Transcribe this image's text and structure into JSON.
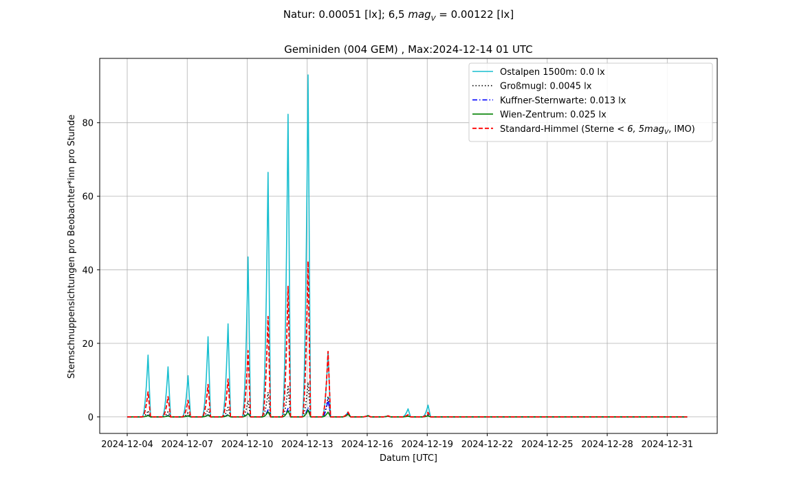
{
  "suptitle": {
    "prefix": "Natur: 0.00051 [lx]; 6,5 ",
    "mag": "mag",
    "mag_sub": "V",
    "suffix": " = 0.00122 [lx]"
  },
  "chart_data": {
    "type": "line",
    "title": "Geminiden (004 GEM) , Max:2024-12-14 01 UTC",
    "xlabel": "Datum [UTC]",
    "ylabel": "Sternschnuppensichtungen pro Beobachter*inn pro Stunde",
    "xlim": [
      "2024-12-02T15:00",
      "2025-01-02T12:00"
    ],
    "ylim": [
      -4.5,
      97.5
    ],
    "x_ticks": [
      "2024-12-04",
      "2024-12-07",
      "2024-12-10",
      "2024-12-13",
      "2024-12-16",
      "2024-12-19",
      "2024-12-22",
      "2024-12-25",
      "2024-12-28",
      "2024-12-31"
    ],
    "y_ticks": [
      0,
      20,
      40,
      60,
      80
    ],
    "grid": true,
    "legend_position": "upper right",
    "x_start": "2024-12-04T00:00",
    "x_end": "2025-01-01T00:00",
    "night_peaks": [
      {
        "x": "2024-12-05T01:00",
        "values": [
          16.8,
          1.7,
          0.5,
          0.4,
          6.8
        ]
      },
      {
        "x": "2024-12-06T01:00",
        "values": [
          13.6,
          1.4,
          0.4,
          0.3,
          5.5
        ]
      },
      {
        "x": "2024-12-07T01:00",
        "values": [
          11.2,
          1.1,
          0.3,
          0.3,
          4.5
        ]
      },
      {
        "x": "2024-12-08T01:00",
        "values": [
          21.8,
          2.2,
          0.6,
          0.5,
          8.8
        ]
      },
      {
        "x": "2024-12-09T01:00",
        "values": [
          25.3,
          2.6,
          0.7,
          0.5,
          10.3
        ]
      },
      {
        "x": "2024-12-10T01:00",
        "values": [
          43.5,
          4.4,
          1.2,
          0.9,
          18.0
        ]
      },
      {
        "x": "2024-12-11T01:00",
        "values": [
          66.5,
          6.7,
          1.9,
          1.4,
          27.3
        ]
      },
      {
        "x": "2024-12-12T01:00",
        "values": [
          82.3,
          8.3,
          2.3,
          1.7,
          35.5
        ]
      },
      {
        "x": "2024-12-13T01:00",
        "values": [
          93.0,
          9.4,
          2.6,
          1.9,
          42.3
        ]
      },
      {
        "x": "2024-12-14T01:00",
        "values": [
          17.8,
          5.6,
          4.8,
          1.3,
          17.8
        ]
      },
      {
        "x": "2024-12-15T01:00",
        "values": [
          1.3,
          1.0,
          0.9,
          0.7,
          1.3
        ]
      },
      {
        "x": "2024-12-16T01:00",
        "values": [
          0.4,
          0.3,
          0.3,
          0.3,
          0.4
        ]
      },
      {
        "x": "2024-12-17T01:00",
        "values": [
          0.3,
          0.2,
          0.2,
          0.2,
          0.3
        ]
      },
      {
        "x": "2024-12-18T01:00",
        "values": [
          2.2,
          0.4,
          0.3,
          0.2,
          0.6
        ]
      },
      {
        "x": "2024-12-19T01:00",
        "values": [
          3.2,
          0.6,
          0.4,
          0.3,
          1.2
        ]
      }
    ],
    "series": [
      {
        "name": "Ostalpen 1500m: 0.0 lx",
        "color": "#17becf",
        "dash": "solid"
      },
      {
        "name": "Großmugl: 0.0045 lx",
        "color": "#000000",
        "dash": "dotted"
      },
      {
        "name": "Kuffner-Sternwarte: 0.013 lx",
        "color": "#0000ff",
        "dash": "dashdot"
      },
      {
        "name": "Wien-Zentrum: 0.025 lx",
        "color": "#008000",
        "dash": "solid"
      },
      {
        "name": "Standard-Himmel (Sterne ",
        "name_math": "< 6, 5",
        "name_mag": "mag",
        "name_sub": "V",
        "name_tail": ", IMO)",
        "color": "#ff0000",
        "dash": "dashed"
      }
    ]
  }
}
